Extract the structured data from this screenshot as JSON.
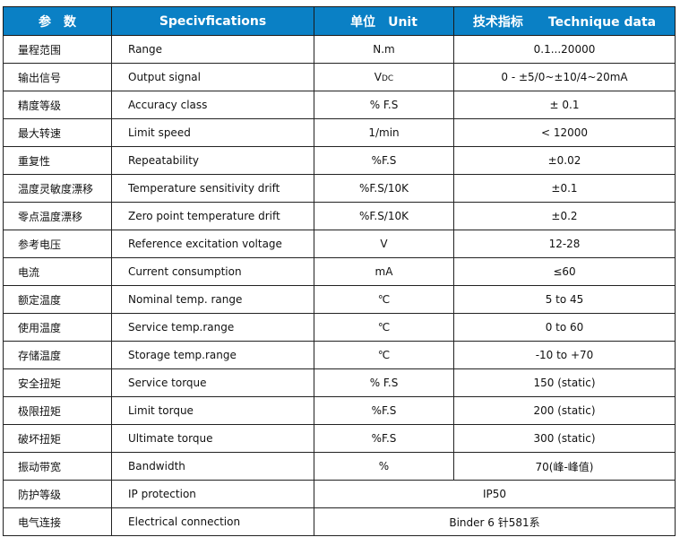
{
  "header": {
    "param": "参　数",
    "spec": "Specivfications",
    "unit": "单位　Unit",
    "data": "技术指标　　Technique data"
  },
  "rows": [
    {
      "cn": "量程范围",
      "en": "Range",
      "unit": "N.m",
      "value": "0.1...20000"
    },
    {
      "cn": "输出信号",
      "en": "Output signal",
      "unit": "V",
      "unit_sub": "DC",
      "value": "0 - ±5/0~±10/4~20mA"
    },
    {
      "cn": "精度等级",
      "en": "Accuracy class",
      "unit": "% F.S",
      "value": "± 0.1"
    },
    {
      "cn": "最大转速",
      "en": "Limit speed",
      "unit": "1/min",
      "value": "< 12000"
    },
    {
      "cn": "重复性",
      "en": "Repeatability",
      "unit": "%F.S",
      "value": "±0.02"
    },
    {
      "cn": "温度灵敏度漂移",
      "en": "Temperature sensitivity drift",
      "unit": "%F.S/10K",
      "value": "±0.1"
    },
    {
      "cn": "零点温度漂移",
      "en": "Zero point temperature drift",
      "unit": "%F.S/10K",
      "value": "±0.2"
    },
    {
      "cn": "参考电压",
      "en": "Reference excitation voltage",
      "unit": "V",
      "value": "12-28"
    },
    {
      "cn": "电流",
      "en": "Current consumption",
      "unit": "mA",
      "value": "≤60"
    },
    {
      "cn": "额定温度",
      "en": "Nominal temp. range",
      "unit": "℃",
      "value": "5 to 45"
    },
    {
      "cn": "使用温度",
      "en": "Service temp.range",
      "unit": "℃",
      "value": "0 to 60"
    },
    {
      "cn": "存储温度",
      "en": "Storage temp.range",
      "unit": "℃",
      "value": "-10 to +70"
    },
    {
      "cn": "安全扭矩",
      "en": "Service torque",
      "unit": "% F.S",
      "value": "150 (static)"
    },
    {
      "cn": "极限扭矩",
      "en": "Limit torque",
      "unit": "%F.S",
      "value": "200 (static)"
    },
    {
      "cn": "破坏扭矩",
      "en": "Ultimate torque",
      "unit": "%F.S",
      "value": "300 (static)"
    },
    {
      "cn": "振动带宽",
      "en": "Bandwidth",
      "unit": "%",
      "value": "70(峰-峰值)"
    },
    {
      "cn": "防护等级",
      "en": "IP protection",
      "value": "IP50"
    },
    {
      "cn": "电气连接",
      "en": "Electrical connection",
      "value": "Binder 6 针581系"
    }
  ]
}
